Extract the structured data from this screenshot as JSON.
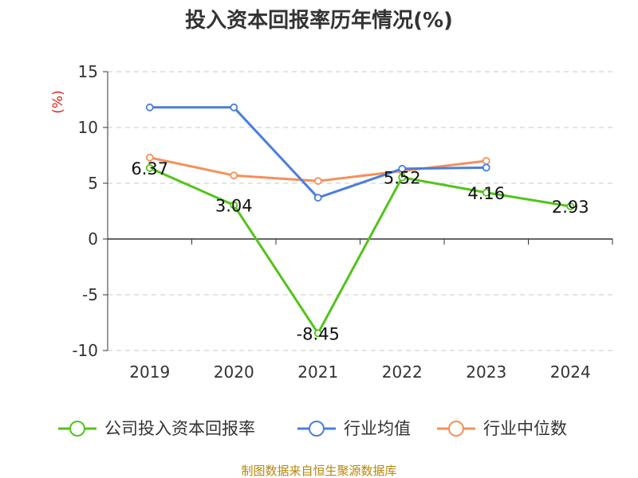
{
  "chart_data": {
    "type": "line",
    "title": "投入资本回报率历年情况(%)",
    "ylabel": "(%)",
    "xlabel": "",
    "categories": [
      "2019",
      "2020",
      "2021",
      "2022",
      "2023",
      "2024"
    ],
    "ylim": [
      -10,
      15
    ],
    "yticks": [
      15,
      10,
      5,
      0,
      -5,
      -10
    ],
    "grid": true,
    "legend_position": "bottom",
    "series": [
      {
        "name": "公司投入资本回报率",
        "color": "#52c41a",
        "values": [
          6.37,
          3.04,
          -8.45,
          5.52,
          4.16,
          2.93
        ],
        "labels": [
          "6.37",
          "3.04",
          "-8.45",
          "5.52",
          "4.16",
          "2.93"
        ]
      },
      {
        "name": "行业均值",
        "color": "#4a7fd9",
        "values": [
          11.8,
          11.8,
          3.7,
          6.3,
          6.4,
          null
        ]
      },
      {
        "name": "行业中位数",
        "color": "#f5905a",
        "values": [
          7.3,
          5.7,
          5.2,
          6.1,
          7.0,
          null
        ]
      }
    ],
    "source": "制图数据来自恒生聚源数据库"
  }
}
